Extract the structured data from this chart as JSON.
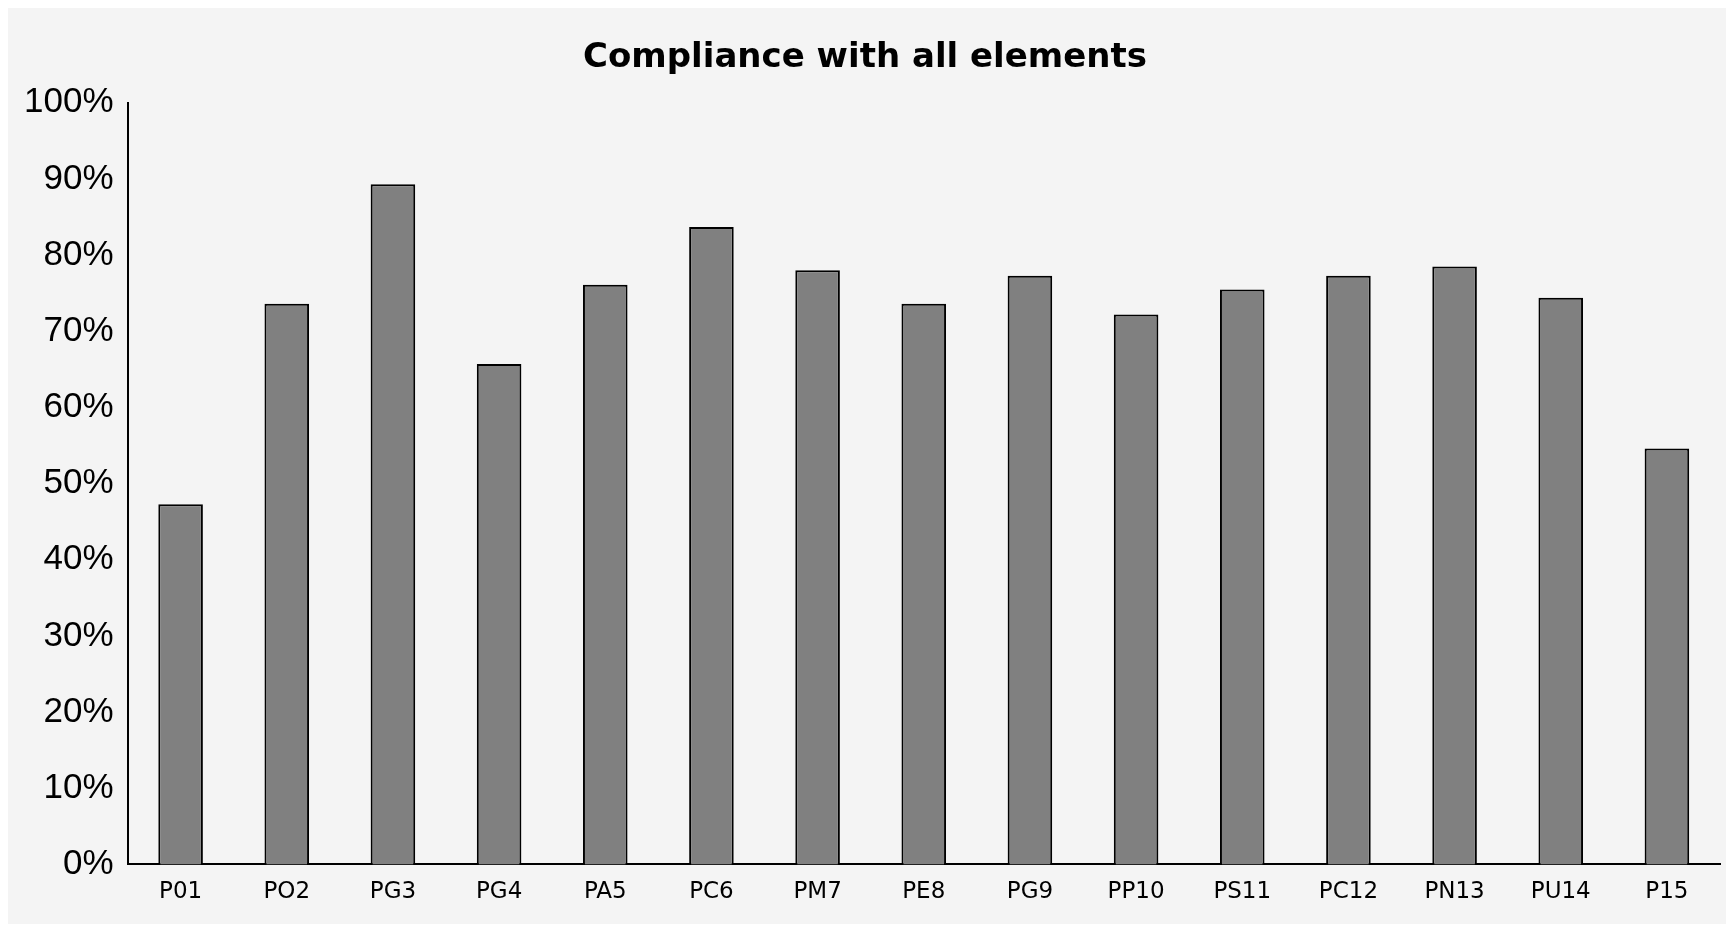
{
  "chart_data": {
    "type": "bar",
    "title": "Compliance with all elements",
    "categories": [
      "P01",
      "PO2",
      "PG3",
      "PG4",
      "PA5",
      "PC6",
      "PM7",
      "PE8",
      "PG9",
      "PP10",
      "PS11",
      "PC12",
      "PN13",
      "PU14",
      "P15"
    ],
    "values": [
      47.3,
      73.6,
      89.3,
      65.7,
      76.1,
      83.7,
      78.0,
      73.6,
      77.3,
      72.2,
      75.5,
      77.3,
      78.5,
      74.4,
      54.6
    ],
    "color": "#808080",
    "ylim": [
      0,
      100
    ],
    "yticks": [
      {
        "value": 0,
        "label": "0%"
      },
      {
        "value": 10,
        "label": "10%"
      },
      {
        "value": 20,
        "label": "20%"
      },
      {
        "value": 30,
        "label": "30%"
      },
      {
        "value": 40,
        "label": "40%"
      },
      {
        "value": 50,
        "label": "50%"
      },
      {
        "value": 60,
        "label": "60%"
      },
      {
        "value": 70,
        "label": "70%"
      },
      {
        "value": 80,
        "label": "80%"
      },
      {
        "value": 90,
        "label": "90%"
      },
      {
        "value": 100,
        "label": "100%"
      }
    ],
    "grid": false,
    "legend": false
  }
}
